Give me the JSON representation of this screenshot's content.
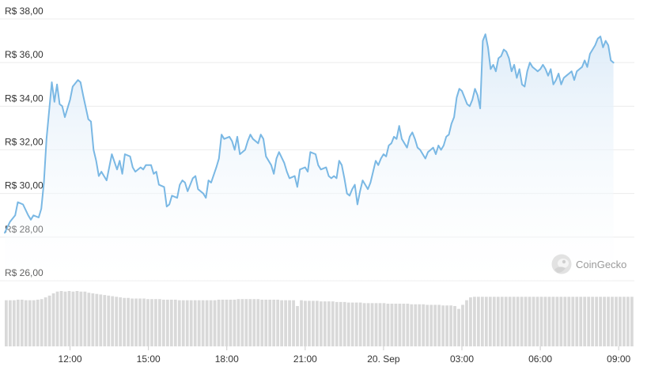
{
  "watermark": {
    "text": "CoinGecko",
    "icon": "gecko-logo-icon"
  },
  "colors": {
    "line": "#7ab8e4",
    "area_top": "#dcebf8",
    "area_bottom": "#ffffff",
    "volume": "#d9d9d9",
    "grid": "#ececec"
  },
  "chart_data": {
    "type": "area",
    "title": "",
    "xlabel": "",
    "ylabel": "",
    "currency_prefix": "R$",
    "ylim": [
      26,
      38
    ],
    "y_ticks": [
      "R$ 38,00",
      "R$ 36,00",
      "R$ 34,00",
      "R$ 32,00",
      "R$ 30,00",
      "R$ 28,00",
      "R$ 26,00"
    ],
    "y_tick_values": [
      38,
      36,
      34,
      32,
      30,
      28,
      26
    ],
    "x_ticks": [
      {
        "label": "12:00",
        "hour": 12
      },
      {
        "label": "15:00",
        "hour": 15
      },
      {
        "label": "18:00",
        "hour": 18
      },
      {
        "label": "21:00",
        "hour": 21
      },
      {
        "label": "20. Sep",
        "hour": 24
      },
      {
        "label": "03:00",
        "hour": 27
      },
      {
        "label": "06:00",
        "hour": 30
      },
      {
        "label": "09:00",
        "hour": 33
      }
    ],
    "xlim_hours": [
      9.5,
      33.6
    ],
    "grid": true,
    "series": [
      {
        "kind": "price",
        "points": [
          [
            9.5,
            28.2
          ],
          [
            9.7,
            28.7
          ],
          [
            9.9,
            29.0
          ],
          [
            10.0,
            29.6
          ],
          [
            10.2,
            29.5
          ],
          [
            10.4,
            29.0
          ],
          [
            10.5,
            28.8
          ],
          [
            10.6,
            29.0
          ],
          [
            10.8,
            28.9
          ],
          [
            10.9,
            29.3
          ],
          [
            11.0,
            30.5
          ],
          [
            11.1,
            32.5
          ],
          [
            11.3,
            35.1
          ],
          [
            11.4,
            34.2
          ],
          [
            11.5,
            35.0
          ],
          [
            11.6,
            34.1
          ],
          [
            11.7,
            34.0
          ],
          [
            11.8,
            33.5
          ],
          [
            12.0,
            34.3
          ],
          [
            12.1,
            34.9
          ],
          [
            12.3,
            35.2
          ],
          [
            12.4,
            35.1
          ],
          [
            12.5,
            34.5
          ],
          [
            12.7,
            33.4
          ],
          [
            12.8,
            33.3
          ],
          [
            12.9,
            32.0
          ],
          [
            13.0,
            31.5
          ],
          [
            13.1,
            30.8
          ],
          [
            13.2,
            31.0
          ],
          [
            13.4,
            30.6
          ],
          [
            13.5,
            31.2
          ],
          [
            13.6,
            31.8
          ],
          [
            13.8,
            31.1
          ],
          [
            13.9,
            31.5
          ],
          [
            14.0,
            30.9
          ],
          [
            14.1,
            31.8
          ],
          [
            14.3,
            31.7
          ],
          [
            14.4,
            31.2
          ],
          [
            14.5,
            31.0
          ],
          [
            14.7,
            31.2
          ],
          [
            14.8,
            31.1
          ],
          [
            14.9,
            31.3
          ],
          [
            15.1,
            31.3
          ],
          [
            15.2,
            30.9
          ],
          [
            15.3,
            31.0
          ],
          [
            15.4,
            30.4
          ],
          [
            15.6,
            30.3
          ],
          [
            15.7,
            29.4
          ],
          [
            15.8,
            29.5
          ],
          [
            15.9,
            29.9
          ],
          [
            16.1,
            29.8
          ],
          [
            16.2,
            30.4
          ],
          [
            16.3,
            30.6
          ],
          [
            16.4,
            30.5
          ],
          [
            16.5,
            30.1
          ],
          [
            16.7,
            30.7
          ],
          [
            16.8,
            30.8
          ],
          [
            16.9,
            30.2
          ],
          [
            17.1,
            30.0
          ],
          [
            17.2,
            29.8
          ],
          [
            17.3,
            30.6
          ],
          [
            17.4,
            30.5
          ],
          [
            17.6,
            31.2
          ],
          [
            17.7,
            31.6
          ],
          [
            17.8,
            32.7
          ],
          [
            17.9,
            32.5
          ],
          [
            18.1,
            32.6
          ],
          [
            18.2,
            32.4
          ],
          [
            18.3,
            32.0
          ],
          [
            18.4,
            32.6
          ],
          [
            18.5,
            31.8
          ],
          [
            18.7,
            32.0
          ],
          [
            18.8,
            32.4
          ],
          [
            18.9,
            32.7
          ],
          [
            19.0,
            32.5
          ],
          [
            19.2,
            32.3
          ],
          [
            19.3,
            32.7
          ],
          [
            19.4,
            32.5
          ],
          [
            19.5,
            31.7
          ],
          [
            19.7,
            31.3
          ],
          [
            19.8,
            30.9
          ],
          [
            19.9,
            31.6
          ],
          [
            20.0,
            31.9
          ],
          [
            20.2,
            31.4
          ],
          [
            20.3,
            31.0
          ],
          [
            20.4,
            30.7
          ],
          [
            20.6,
            30.8
          ],
          [
            20.7,
            30.3
          ],
          [
            20.8,
            31.1
          ],
          [
            21.0,
            31.2
          ],
          [
            21.1,
            31.0
          ],
          [
            21.2,
            31.9
          ],
          [
            21.4,
            31.8
          ],
          [
            21.5,
            31.3
          ],
          [
            21.6,
            31.1
          ],
          [
            21.8,
            31.2
          ],
          [
            21.9,
            30.8
          ],
          [
            22.0,
            30.7
          ],
          [
            22.1,
            30.8
          ],
          [
            22.2,
            30.7
          ],
          [
            22.3,
            31.5
          ],
          [
            22.4,
            31.3
          ],
          [
            22.5,
            30.7
          ],
          [
            22.6,
            30.0
          ],
          [
            22.7,
            29.9
          ],
          [
            22.8,
            30.2
          ],
          [
            22.9,
            30.4
          ],
          [
            23.0,
            29.5
          ],
          [
            23.1,
            30.1
          ],
          [
            23.2,
            30.6
          ],
          [
            23.3,
            30.4
          ],
          [
            23.4,
            30.2
          ],
          [
            23.5,
            30.5
          ],
          [
            23.6,
            31.0
          ],
          [
            23.7,
            31.5
          ],
          [
            23.8,
            31.3
          ],
          [
            23.9,
            31.6
          ],
          [
            24.0,
            31.8
          ],
          [
            24.1,
            31.7
          ],
          [
            24.2,
            32.2
          ],
          [
            24.3,
            32.3
          ],
          [
            24.4,
            32.6
          ],
          [
            24.5,
            32.5
          ],
          [
            24.6,
            33.1
          ],
          [
            24.7,
            32.5
          ],
          [
            24.8,
            32.3
          ],
          [
            24.9,
            32.1
          ],
          [
            25.0,
            32.6
          ],
          [
            25.1,
            32.8
          ],
          [
            25.2,
            32.5
          ],
          [
            25.3,
            32.1
          ],
          [
            25.4,
            32.0
          ],
          [
            25.5,
            31.8
          ],
          [
            25.6,
            31.6
          ],
          [
            25.7,
            31.9
          ],
          [
            25.8,
            32.0
          ],
          [
            25.9,
            32.1
          ],
          [
            26.0,
            31.8
          ],
          [
            26.1,
            32.2
          ],
          [
            26.2,
            32.0
          ],
          [
            26.3,
            32.2
          ],
          [
            26.4,
            32.6
          ],
          [
            26.5,
            32.7
          ],
          [
            26.6,
            33.2
          ],
          [
            26.7,
            33.5
          ],
          [
            26.8,
            34.4
          ],
          [
            26.9,
            34.8
          ],
          [
            27.0,
            34.7
          ],
          [
            27.1,
            34.4
          ],
          [
            27.2,
            34.1
          ],
          [
            27.3,
            34.0
          ],
          [
            27.4,
            34.3
          ],
          [
            27.5,
            34.8
          ],
          [
            27.6,
            34.5
          ],
          [
            27.7,
            33.9
          ],
          [
            27.8,
            37.0
          ],
          [
            27.9,
            37.3
          ],
          [
            28.0,
            36.7
          ],
          [
            28.1,
            35.7
          ],
          [
            28.2,
            35.9
          ],
          [
            28.3,
            35.6
          ],
          [
            28.4,
            36.2
          ],
          [
            28.5,
            36.3
          ],
          [
            28.6,
            36.6
          ],
          [
            28.7,
            36.5
          ],
          [
            28.8,
            36.2
          ],
          [
            28.9,
            35.6
          ],
          [
            29.0,
            35.9
          ],
          [
            29.1,
            35.3
          ],
          [
            29.2,
            35.7
          ],
          [
            29.3,
            35.0
          ],
          [
            29.4,
            34.9
          ],
          [
            29.5,
            35.6
          ],
          [
            29.6,
            36.0
          ],
          [
            29.7,
            35.8
          ],
          [
            29.8,
            35.7
          ],
          [
            29.9,
            35.6
          ],
          [
            30.0,
            35.7
          ],
          [
            30.1,
            35.9
          ],
          [
            30.2,
            35.7
          ],
          [
            30.3,
            35.4
          ],
          [
            30.4,
            35.7
          ],
          [
            30.5,
            35.0
          ],
          [
            30.6,
            35.2
          ],
          [
            30.7,
            35.5
          ],
          [
            30.8,
            35.0
          ],
          [
            30.9,
            35.3
          ],
          [
            31.0,
            35.4
          ],
          [
            31.1,
            35.5
          ],
          [
            31.2,
            35.6
          ],
          [
            31.3,
            35.2
          ],
          [
            31.4,
            35.6
          ],
          [
            31.5,
            35.7
          ],
          [
            31.6,
            35.8
          ],
          [
            31.7,
            36.1
          ],
          [
            31.8,
            35.8
          ],
          [
            31.9,
            36.4
          ],
          [
            32.0,
            36.6
          ],
          [
            32.1,
            36.8
          ],
          [
            32.2,
            37.1
          ],
          [
            32.3,
            37.2
          ],
          [
            32.4,
            36.7
          ],
          [
            32.5,
            37.0
          ],
          [
            32.6,
            36.8
          ],
          [
            32.7,
            36.1
          ],
          [
            32.8,
            36.0
          ]
        ]
      }
    ],
    "volume": {
      "note": "relative bar heights, unitless",
      "values": [
        0.8,
        0.8,
        0.8,
        0.81,
        0.81,
        0.8,
        0.8,
        0.8,
        0.81,
        0.82,
        0.85,
        0.88,
        0.92,
        0.95,
        0.96,
        0.95,
        0.96,
        0.95,
        0.96,
        0.95,
        0.95,
        0.93,
        0.92,
        0.91,
        0.9,
        0.89,
        0.88,
        0.87,
        0.86,
        0.85,
        0.84,
        0.84,
        0.83,
        0.83,
        0.83,
        0.83,
        0.82,
        0.82,
        0.82,
        0.82,
        0.81,
        0.81,
        0.81,
        0.81,
        0.8,
        0.8,
        0.8,
        0.8,
        0.8,
        0.8,
        0.8,
        0.8,
        0.8,
        0.8,
        0.81,
        0.81,
        0.81,
        0.81,
        0.81,
        0.82,
        0.82,
        0.82,
        0.82,
        0.82,
        0.82,
        0.81,
        0.81,
        0.81,
        0.81,
        0.81,
        0.8,
        0.8,
        0.8,
        0.8,
        0.7,
        0.8,
        0.79,
        0.79,
        0.79,
        0.79,
        0.78,
        0.78,
        0.78,
        0.78,
        0.77,
        0.77,
        0.77,
        0.76,
        0.76,
        0.76,
        0.76,
        0.75,
        0.75,
        0.75,
        0.75,
        0.75,
        0.75,
        0.74,
        0.74,
        0.74,
        0.74,
        0.74,
        0.74,
        0.73,
        0.73,
        0.73,
        0.73,
        0.72,
        0.72,
        0.72,
        0.72,
        0.71,
        0.71,
        0.71,
        0.7,
        0.65,
        0.72,
        0.8,
        0.85,
        0.86,
        0.86,
        0.86,
        0.86,
        0.86,
        0.86,
        0.86,
        0.86,
        0.86,
        0.86,
        0.86,
        0.86,
        0.86,
        0.86,
        0.86,
        0.86,
        0.86,
        0.86,
        0.86,
        0.86,
        0.86,
        0.86,
        0.86,
        0.86,
        0.86,
        0.86,
        0.86,
        0.86,
        0.86,
        0.86,
        0.86,
        0.86,
        0.86,
        0.86,
        0.86,
        0.86,
        0.86,
        0.86,
        0.86,
        0.86,
        0.86
      ]
    }
  }
}
